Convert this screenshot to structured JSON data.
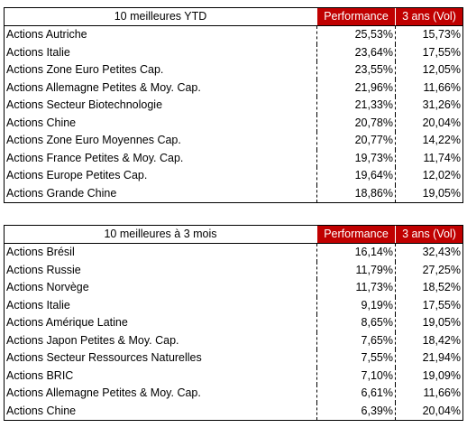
{
  "table1": {
    "title": "10 meilleures  YTD",
    "col_perf": "Performance",
    "col_vol": "3 ans (Vol)",
    "rows": [
      {
        "name": "Actions Autriche",
        "perf": "25,53%",
        "vol": "15,73%"
      },
      {
        "name": "Actions Italie",
        "perf": "23,64%",
        "vol": "17,55%"
      },
      {
        "name": "Actions Zone Euro Petites Cap.",
        "perf": "23,55%",
        "vol": "12,05%"
      },
      {
        "name": "Actions Allemagne  Petites & Moy. Cap.",
        "perf": "21,96%",
        "vol": "11,66%"
      },
      {
        "name": "Actions Secteur Biotechnologie",
        "perf": "21,33%",
        "vol": "31,26%"
      },
      {
        "name": "Actions Chine",
        "perf": "20,78%",
        "vol": "20,04%"
      },
      {
        "name": "Actions Zone Euro Moyennes Cap.",
        "perf": "20,77%",
        "vol": "14,22%"
      },
      {
        "name": "Actions France Petites & Moy. Cap.",
        "perf": "19,73%",
        "vol": "11,74%"
      },
      {
        "name": "Actions Europe Petites Cap.",
        "perf": "19,64%",
        "vol": "12,02%"
      },
      {
        "name": "Actions Grande Chine",
        "perf": "18,86%",
        "vol": "19,05%"
      }
    ]
  },
  "table2": {
    "title": "10 meilleures  à 3 mois",
    "col_perf": "Performance",
    "col_vol": "3 ans (Vol)",
    "rows": [
      {
        "name": "Actions Brésil",
        "perf": "16,14%",
        "vol": "32,43%"
      },
      {
        "name": "Actions Russie",
        "perf": "11,79%",
        "vol": "27,25%"
      },
      {
        "name": "Actions Norvège",
        "perf": "11,73%",
        "vol": "18,52%"
      },
      {
        "name": "Actions Italie",
        "perf": "9,19%",
        "vol": "17,55%"
      },
      {
        "name": "Actions Amérique  Latine",
        "perf": "8,65%",
        "vol": "19,05%"
      },
      {
        "name": "Actions Japon Petites & Moy. Cap.",
        "perf": "7,65%",
        "vol": "18,42%"
      },
      {
        "name": "Actions Secteur Ressources Naturelles",
        "perf": "7,55%",
        "vol": "21,94%"
      },
      {
        "name": "Actions BRIC",
        "perf": "7,10%",
        "vol": "19,09%"
      },
      {
        "name": "Actions Allemagne  Petites & Moy. Cap.",
        "perf": "6,61%",
        "vol": "11,66%"
      },
      {
        "name": "Actions Chine",
        "perf": "6,39%",
        "vol": "20,04%"
      }
    ]
  }
}
